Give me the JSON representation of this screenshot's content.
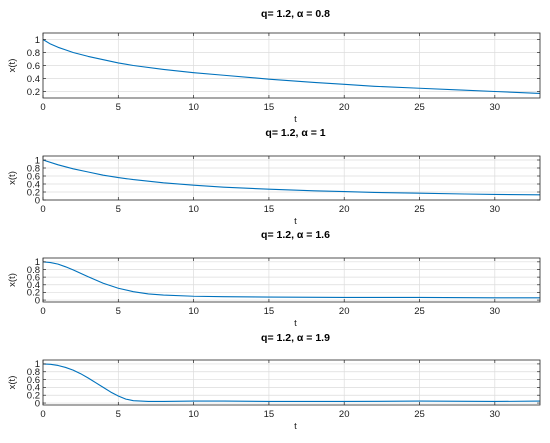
{
  "chart_data": [
    {
      "type": "line",
      "title": "q= 1.2, α = 0.8",
      "xlabel": "t",
      "ylabel": "x(t)",
      "xlim": [
        0,
        33
      ],
      "ylim": [
        0.1,
        1.1
      ],
      "xticks": [
        0,
        5,
        10,
        15,
        20,
        25,
        30
      ],
      "yticks": [
        0.2,
        0.4,
        0.6,
        0.8,
        1
      ],
      "grid": true,
      "color": "#0072bd",
      "series": [
        {
          "x": [
            0,
            0.5,
            1,
            1.5,
            2,
            3,
            4,
            5,
            6,
            8,
            10,
            12,
            15,
            18,
            20,
            22,
            25,
            28,
            30,
            33
          ],
          "y": [
            1.0,
            0.93,
            0.88,
            0.84,
            0.8,
            0.74,
            0.69,
            0.64,
            0.6,
            0.54,
            0.49,
            0.45,
            0.39,
            0.34,
            0.31,
            0.28,
            0.25,
            0.22,
            0.2,
            0.17
          ]
        }
      ]
    },
    {
      "type": "line",
      "title": "q= 1.2, α = 1",
      "xlabel": "t",
      "ylabel": "x(t)",
      "xlim": [
        0,
        33
      ],
      "ylim": [
        0,
        1.1
      ],
      "xticks": [
        0,
        5,
        10,
        15,
        20,
        25,
        30
      ],
      "yticks": [
        0,
        0.2,
        0.4,
        0.6,
        0.8,
        1
      ],
      "grid": true,
      "color": "#0072bd",
      "series": [
        {
          "x": [
            0,
            1,
            2,
            3,
            4,
            5,
            6,
            8,
            10,
            12,
            15,
            18,
            20,
            22,
            25,
            28,
            30,
            33
          ],
          "y": [
            1.0,
            0.88,
            0.78,
            0.7,
            0.62,
            0.56,
            0.51,
            0.43,
            0.37,
            0.32,
            0.27,
            0.23,
            0.21,
            0.19,
            0.17,
            0.15,
            0.14,
            0.13
          ]
        }
      ]
    },
    {
      "type": "line",
      "title": "q= 1.2, α = 1.6",
      "xlabel": "t",
      "ylabel": "x(t)",
      "xlim": [
        0,
        33
      ],
      "ylim": [
        -0.05,
        1.1
      ],
      "xticks": [
        0,
        5,
        10,
        15,
        20,
        25,
        30
      ],
      "yticks": [
        0,
        0.2,
        0.4,
        0.6,
        0.8,
        1
      ],
      "grid": true,
      "color": "#0072bd",
      "series": [
        {
          "x": [
            0,
            0.5,
            1,
            1.5,
            2,
            3,
            4,
            5,
            6,
            7,
            8,
            10,
            12,
            15,
            20,
            25,
            30,
            33
          ],
          "y": [
            1.0,
            0.98,
            0.94,
            0.87,
            0.79,
            0.61,
            0.44,
            0.31,
            0.22,
            0.16,
            0.13,
            0.1,
            0.09,
            0.08,
            0.07,
            0.07,
            0.06,
            0.06
          ]
        }
      ]
    },
    {
      "type": "line",
      "title": "q= 1.2, α = 1.9",
      "xlabel": "t",
      "ylabel": "x(t)",
      "xlim": [
        0,
        33
      ],
      "ylim": [
        -0.05,
        1.1
      ],
      "xticks": [
        0,
        5,
        10,
        15,
        20,
        25,
        30
      ],
      "yticks": [
        0,
        0.2,
        0.4,
        0.6,
        0.8,
        1
      ],
      "grid": true,
      "color": "#0072bd",
      "series": [
        {
          "x": [
            0,
            0.5,
            1,
            1.5,
            2,
            2.5,
            3,
            3.5,
            4,
            4.5,
            5,
            5.5,
            6,
            7,
            8,
            10,
            12,
            15,
            20,
            25,
            30,
            33
          ],
          "y": [
            1.0,
            0.99,
            0.96,
            0.91,
            0.84,
            0.75,
            0.64,
            0.52,
            0.4,
            0.28,
            0.18,
            0.1,
            0.06,
            0.04,
            0.04,
            0.05,
            0.05,
            0.04,
            0.04,
            0.05,
            0.04,
            0.05
          ]
        }
      ]
    }
  ]
}
